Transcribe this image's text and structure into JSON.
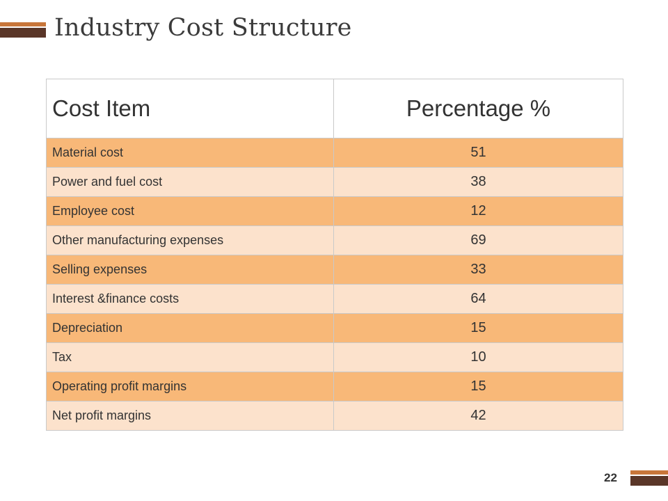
{
  "slide": {
    "title": "Industry Cost Structure",
    "page_number": "22"
  },
  "table": {
    "headers": [
      "Cost Item",
      "Percentage %"
    ],
    "rows": [
      {
        "item": "Material cost",
        "value": "51"
      },
      {
        "item": "Power and fuel cost",
        "value": "38"
      },
      {
        "item": "Employee cost",
        "value": "12"
      },
      {
        "item": "Other manufacturing expenses",
        "value": "69"
      },
      {
        "item": "Selling expenses",
        "value": "33"
      },
      {
        "item": "Interest &finance costs",
        "value": "64"
      },
      {
        "item": "Depreciation",
        "value": "15"
      },
      {
        "item": "Tax",
        "value": "10"
      },
      {
        "item": "Operating profit margins",
        "value": "15"
      },
      {
        "item": "Net profit margins",
        "value": "42"
      }
    ]
  },
  "colors": {
    "accent_orange": "#c8763a",
    "accent_brown": "#5a3628",
    "row_dark": "#f8b878",
    "row_light": "#fce2cc"
  }
}
